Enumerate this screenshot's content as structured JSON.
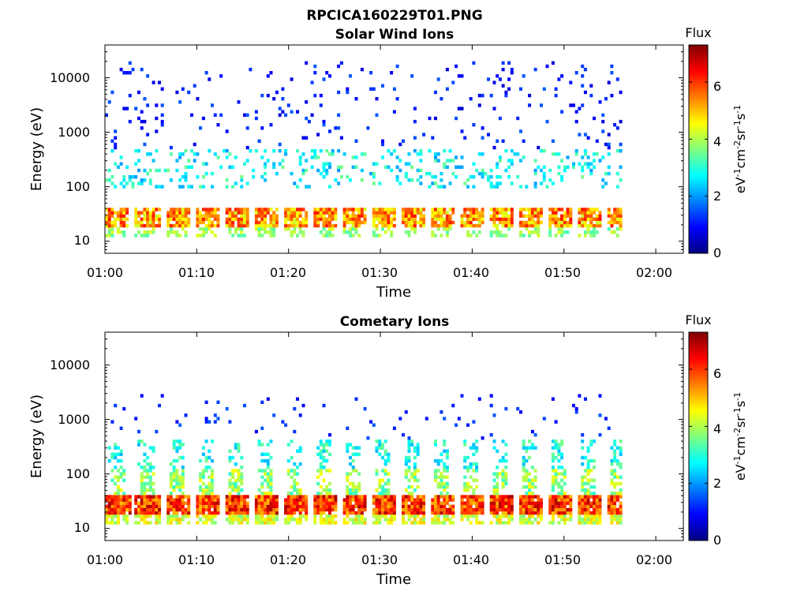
{
  "figure_title": "RPCICA160229T01.PNG",
  "chart_data": [
    {
      "type": "heatmap",
      "title": "Solar Wind Ions",
      "xlabel": "Time",
      "ylabel": "Energy (eV)",
      "yscale": "log",
      "ylim": [
        6,
        40000
      ],
      "xlim": [
        "01:00",
        "02:03"
      ],
      "xticks": [
        "01:00",
        "01:10",
        "01:20",
        "01:30",
        "01:40",
        "01:50",
        "02:00"
      ],
      "yticks": [
        10,
        100,
        1000,
        10000
      ],
      "ytick_labels": [
        "10",
        "100",
        "1000",
        "10000"
      ],
      "data_end_time": "01:56",
      "colorbar": {
        "title": "Flux",
        "label": "eV-1cm-2sr-1s-1",
        "label_parts": [
          "eV",
          "-1",
          "cm",
          "-2",
          "sr",
          "-1",
          "s",
          "-1"
        ],
        "range": [
          0,
          7.3
        ],
        "ticks": [
          0,
          2,
          4,
          6
        ],
        "colormap": "jet"
      },
      "sweep_period_min": 3.2,
      "bands": [
        {
          "emin": 17,
          "emax": 42,
          "level_range": [
            4.2,
            6.3
          ],
          "fill": 0.85,
          "on": [
            0.0,
            0.8
          ]
        },
        {
          "emin": 12,
          "emax": 17,
          "level_range": [
            3.2,
            4.4
          ],
          "fill": 0.5,
          "on": [
            0.0,
            0.7
          ]
        },
        {
          "emin": 100,
          "emax": 500,
          "level_range": [
            2.0,
            3.6
          ],
          "fill": 0.16,
          "on": [
            0.0,
            1.0
          ]
        },
        {
          "emin": 500,
          "emax": 20000,
          "level_range": [
            0.6,
            1.6
          ],
          "fill": 0.055,
          "on": [
            0.0,
            1.0
          ]
        }
      ]
    },
    {
      "type": "heatmap",
      "title": "Cometary Ions",
      "xlabel": "Time",
      "ylabel": "Energy (eV)",
      "yscale": "log",
      "ylim": [
        6,
        40000
      ],
      "xlim": [
        "01:00",
        "02:03"
      ],
      "xticks": [
        "01:00",
        "01:10",
        "01:20",
        "01:30",
        "01:40",
        "01:50",
        "02:00"
      ],
      "yticks": [
        10,
        100,
        1000,
        10000
      ],
      "ytick_labels": [
        "10",
        "100",
        "1000",
        "10000"
      ],
      "data_end_time": "01:56",
      "colorbar": {
        "title": "Flux",
        "label": "eV-1cm-2sr-1s-1",
        "label_parts": [
          "eV",
          "-1",
          "cm",
          "-2",
          "sr",
          "-1",
          "s",
          "-1"
        ],
        "range": [
          0,
          7.3
        ],
        "ticks": [
          0,
          2,
          4,
          6
        ],
        "colormap": "jet"
      },
      "sweep_period_min": 3.2,
      "bands": [
        {
          "emin": 18,
          "emax": 42,
          "level_range": [
            5.0,
            7.0
          ],
          "fill": 0.95,
          "on": [
            0.0,
            0.85
          ]
        },
        {
          "emin": 12,
          "emax": 18,
          "level_range": [
            3.6,
            5.0
          ],
          "fill": 0.7,
          "on": [
            0.0,
            0.8
          ]
        },
        {
          "emin": 42,
          "emax": 120,
          "level_range": [
            3.0,
            4.6
          ],
          "fill": 0.55,
          "on": [
            0.15,
            0.65
          ]
        },
        {
          "emin": 120,
          "emax": 450,
          "level_range": [
            2.2,
            3.6
          ],
          "fill": 0.35,
          "on": [
            0.1,
            0.6
          ]
        },
        {
          "emin": 450,
          "emax": 3000,
          "level_range": [
            0.8,
            1.6
          ],
          "fill": 0.03,
          "on": [
            0.0,
            1.0
          ]
        }
      ]
    }
  ]
}
